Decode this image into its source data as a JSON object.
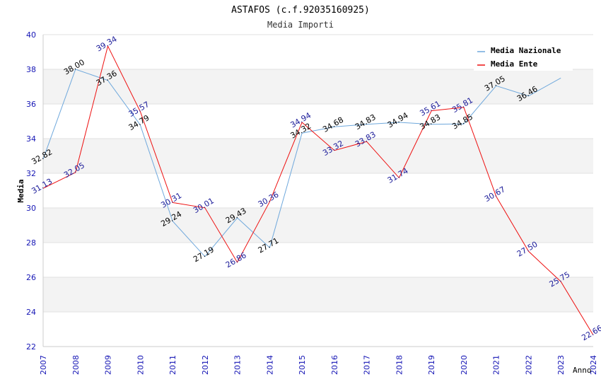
{
  "chart_data": {
    "type": "line",
    "title": "ASTAFOS (c.f.92035160925)",
    "subtitle": "Media Importi",
    "xlabel": "Anno",
    "ylabel": "Media",
    "ylim": [
      22,
      40
    ],
    "yticks": [
      22,
      24,
      26,
      28,
      30,
      32,
      34,
      36,
      38,
      40
    ],
    "x": [
      "2007",
      "2008",
      "2009",
      "2010",
      "2011",
      "2012",
      "2013",
      "2014",
      "2015",
      "2016",
      "2017",
      "2018",
      "2019",
      "2020",
      "2021",
      "2022",
      "2023",
      "2024"
    ],
    "grid": "horizontal bands",
    "legend_position": "top-right",
    "series": [
      {
        "name": "Media Nazionale",
        "color": "#6fa8dc",
        "label_color": "#000000",
        "values": [
          32.82,
          38.0,
          37.36,
          34.79,
          29.24,
          27.19,
          29.43,
          27.71,
          34.32,
          34.68,
          34.83,
          34.94,
          34.83,
          34.85,
          37.05,
          36.46,
          37.5,
          null
        ],
        "labels": [
          "32.82",
          "38.00",
          "37.36",
          "34.79",
          "29.24",
          "27.19",
          "29.43",
          "27.71",
          "34.32",
          "34.68",
          "34.83",
          "34.94",
          "34.83",
          "34.85",
          "37.05",
          "36.46",
          "",
          ""
        ]
      },
      {
        "name": "Media Ente",
        "color": "#ee1111",
        "label_color": "#1a1a99",
        "values": [
          31.13,
          32.05,
          39.34,
          35.57,
          30.31,
          30.01,
          26.86,
          30.36,
          34.94,
          33.32,
          33.83,
          31.74,
          35.61,
          35.81,
          30.67,
          27.5,
          25.75,
          22.66
        ],
        "labels": [
          "31.13",
          "32.05",
          "39.34",
          "35.57",
          "30.31",
          "30.01",
          "26.86",
          "30.36",
          "34.94",
          "33.32",
          "33.83",
          "31.74",
          "35.61",
          "35.81",
          "30.67",
          "27.50",
          "25.75",
          "22.66"
        ]
      }
    ]
  }
}
